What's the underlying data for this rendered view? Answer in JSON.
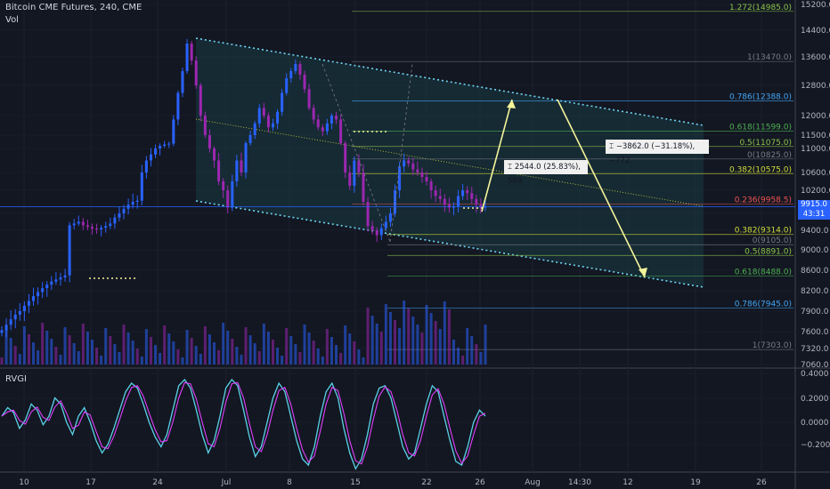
{
  "header": {
    "symbol_line": "Bitcoin CME Futures, 240, CME",
    "vol_label": "Vol",
    "indicator_label": "RVGI"
  },
  "price_badge": {
    "value": "9915.0",
    "countdown": "43:31",
    "color": "#2962ff"
  },
  "measure_up": {
    "text": "2544.0 (25.83%), 509"
  },
  "measure_down": {
    "text": "−3862.0 (−31.18%), −772"
  },
  "colors": {
    "up": "#2962ff",
    "down": "#9c27b0",
    "channel": "#6fd6f2",
    "arrow": "#f4f49a",
    "fib": "#8bc34a"
  },
  "chart_data": {
    "type": "candlestick",
    "title": "Bitcoin CME Futures, 240, CME",
    "x_tick_labels": [
      "10",
      "17",
      "24",
      "Jul",
      "8",
      "15",
      "22",
      "26",
      "Aug",
      "14:30",
      "12",
      "19",
      "26"
    ],
    "y_tick_labels": [
      "15200.0",
      "14400.0",
      "13600.0",
      "12800.0",
      "12000.0",
      "11500.0",
      "11000.0",
      "10600.0",
      "10200.0",
      "9800.0",
      "9400.0",
      "9000.0",
      "8600.0",
      "8200.0",
      "7900.0",
      "7600.0",
      "7320.0",
      "7060.0"
    ],
    "rvgi_tick_labels": [
      "0.4000",
      "0.2000",
      "0.0000",
      "−0.2000"
    ],
    "ylim": [
      7060,
      15200
    ],
    "fib_levels_upper": [
      {
        "label": "1.272(14985.0)",
        "price": 14985,
        "color": "#8bc34a"
      },
      {
        "label": "1(13470.0)",
        "price": 13470,
        "color": "#787b86"
      },
      {
        "label": "0.786(12388.0)",
        "price": 12388,
        "color": "#42a5f5"
      },
      {
        "label": "0.618(11599.0)",
        "price": 11599,
        "color": "#4caf50"
      },
      {
        "label": "0.5(11075.0)",
        "price": 11075,
        "color": "#8bc34a"
      },
      {
        "label": "0(10825.0)",
        "price": 10825,
        "color": "#787b86"
      },
      {
        "label": "0.382(10575.0)",
        "price": 10575,
        "color": "#cddc39"
      },
      {
        "label": "0.236(9958.5)",
        "price": 9958.5,
        "color": "#ef5350"
      }
    ],
    "fib_levels_lower": [
      {
        "label": "0.382(9314.0)",
        "price": 9314,
        "color": "#cddc39"
      },
      {
        "label": "0(9105.0)",
        "price": 9105,
        "color": "#787b86"
      },
      {
        "label": "0.5(8891.0)",
        "price": 8891,
        "color": "#8bc34a"
      },
      {
        "label": "0.618(8488.0)",
        "price": 8488,
        "color": "#4caf50"
      },
      {
        "label": "0.786(7945.0)",
        "price": 7945,
        "color": "#42a5f5"
      },
      {
        "label": "1(7303.0)",
        "price": 7303,
        "color": "#787b86"
      }
    ],
    "closes": [
      7620,
      7700,
      7780,
      7850,
      7900,
      7980,
      8050,
      8120,
      8180,
      8250,
      8320,
      8380,
      8420,
      8460,
      8500,
      9520,
      9560,
      9600,
      9520,
      9480,
      9440,
      9420,
      9460,
      9500,
      9560,
      9700,
      9800,
      9880,
      9950,
      10000,
      10020,
      10600,
      10800,
      10900,
      11000,
      11100,
      11150,
      11180,
      11900,
      12600,
      13200,
      14000,
      13500,
      12800,
      12000,
      11500,
      11000,
      10800,
      10400,
      10200,
      9900,
      10400,
      10800,
      10600,
      11200,
      11500,
      11800,
      12200,
      12000,
      11700,
      11800,
      12100,
      12600,
      13000,
      13200,
      13400,
      13100,
      12700,
      12200,
      11900,
      11700,
      11600,
      11800,
      12000,
      11900,
      11200,
      10600,
      10300,
      10800,
      10600,
      10000,
      9500,
      9400,
      9300,
      9450,
      9600,
      9800,
      10200,
      10700,
      10800,
      10750,
      10650,
      10600,
      10500,
      10400,
      10200,
      10100,
      10050,
      9950,
      9900,
      9920,
      10100,
      10200,
      10150,
      10050,
      9950,
      9900,
      9915
    ],
    "rvgi": [
      0.05,
      0.12,
      0.08,
      -0.05,
      0.02,
      0.15,
      0.1,
      -0.02,
      0.05,
      0.2,
      0.15,
      0.0,
      -0.1,
      0.05,
      0.12,
      0.0,
      -0.15,
      -0.25,
      -0.18,
      -0.05,
      0.1,
      0.25,
      0.32,
      0.28,
      0.15,
      0.0,
      -0.12,
      -0.2,
      -0.1,
      0.1,
      0.3,
      0.35,
      0.28,
      0.1,
      -0.1,
      -0.25,
      -0.15,
      0.05,
      0.28,
      0.35,
      0.3,
      0.1,
      -0.12,
      -0.28,
      -0.2,
      0.0,
      0.2,
      0.32,
      0.25,
      0.05,
      -0.15,
      -0.3,
      -0.35,
      -0.2,
      0.05,
      0.25,
      0.32,
      0.2,
      -0.05,
      -0.25,
      -0.38,
      -0.3,
      -0.1,
      0.15,
      0.28,
      0.3,
      0.2,
      0.0,
      -0.2,
      -0.3,
      -0.25,
      -0.05,
      0.15,
      0.3,
      0.25,
      0.05,
      -0.15,
      -0.32,
      -0.35,
      -0.2,
      0.0,
      0.1,
      0.05
    ]
  }
}
